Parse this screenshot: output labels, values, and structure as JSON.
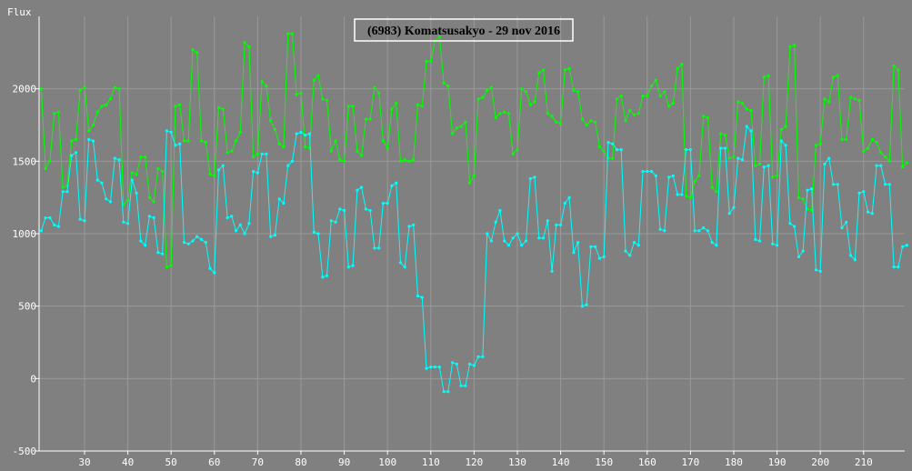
{
  "chart_data": {
    "type": "line",
    "title": "(6983) Komatsusakyo - 29 nov 2016",
    "ylabel": "Flux",
    "xlabel": "",
    "xlim": [
      19.5,
      219.5
    ],
    "ylim": [
      -500,
      2500
    ],
    "xticks": [
      30,
      40,
      50,
      60,
      70,
      80,
      90,
      100,
      110,
      120,
      130,
      140,
      150,
      160,
      170,
      180,
      190,
      200,
      210
    ],
    "yticks": [
      -500,
      0,
      500,
      1000,
      1500,
      2000
    ],
    "grid": true,
    "colors": {
      "background": "#808080",
      "grid": "#999999",
      "axis": "#ffffff",
      "title_box": "#ffffff"
    },
    "series": [
      {
        "color": "#00ff00",
        "values": [
          2000,
          1450,
          1500,
          1830,
          1840,
          1320,
          1330,
          1640,
          1650,
          1990,
          2010,
          1710,
          1750,
          1840,
          1880,
          1890,
          1930,
          2010,
          2000,
          1200,
          1230,
          1420,
          1410,
          1530,
          1530,
          1250,
          1220,
          1450,
          1430,
          770,
          780,
          1880,
          1890,
          1640,
          1640,
          2270,
          2250,
          1640,
          1630,
          1410,
          1400,
          1870,
          1860,
          1560,
          1570,
          1640,
          1700,
          2320,
          2290,
          1530,
          1550,
          2050,
          2020,
          1780,
          1720,
          1620,
          1600,
          2380,
          2380,
          1960,
          1970,
          1600,
          1590,
          2060,
          2090,
          1930,
          1920,
          1570,
          1640,
          1510,
          1500,
          1880,
          1880,
          1570,
          1540,
          1790,
          1790,
          2010,
          1970,
          1640,
          1590,
          1860,
          1900,
          1500,
          1510,
          1500,
          1510,
          1890,
          1880,
          2190,
          2190,
          2330,
          2360,
          2040,
          2020,
          1690,
          1730,
          1740,
          1770,
          1350,
          1400,
          1930,
          1940,
          1990,
          2010,
          1800,
          1830,
          1840,
          1830,
          1550,
          1580,
          2000,
          1980,
          1890,
          1910,
          2110,
          2130,
          1830,
          1810,
          1770,
          1760,
          2130,
          2140,
          1990,
          1980,
          1790,
          1750,
          1780,
          1770,
          1600,
          1570,
          1520,
          1520,
          1930,
          1950,
          1780,
          1850,
          1820,
          1830,
          1950,
          1950,
          2020,
          2060,
          1950,
          1980,
          1880,
          1900,
          2140,
          2170,
          1260,
          1250,
          1360,
          1400,
          1810,
          1800,
          1320,
          1290,
          1690,
          1680,
          1520,
          1530,
          1910,
          1900,
          1860,
          1850,
          1470,
          1480,
          2080,
          2090,
          1390,
          1400,
          1720,
          1740,
          2290,
          2300,
          1250,
          1240,
          1170,
          1160,
          1610,
          1620,
          1930,
          1910,
          2080,
          2090,
          1650,
          1650,
          1940,
          1930,
          1920,
          1570,
          1590,
          1650,
          1630,
          1560,
          1530,
          1500,
          2160,
          2130,
          1460,
          1490
        ]
      },
      {
        "color": "#00ffff",
        "values": [
          1020,
          1110,
          1110,
          1060,
          1050,
          1290,
          1290,
          1540,
          1560,
          1100,
          1090,
          1650,
          1640,
          1370,
          1350,
          1240,
          1220,
          1520,
          1510,
          1080,
          1070,
          1370,
          1280,
          950,
          920,
          1120,
          1110,
          870,
          860,
          1710,
          1700,
          1610,
          1620,
          940,
          930,
          950,
          980,
          960,
          940,
          760,
          730,
          1440,
          1470,
          1110,
          1120,
          1020,
          1060,
          1000,
          1070,
          1430,
          1420,
          1550,
          1550,
          980,
          990,
          1240,
          1210,
          1470,
          1500,
          1690,
          1700,
          1680,
          1690,
          1010,
          1000,
          700,
          710,
          1090,
          1080,
          1170,
          1160,
          770,
          780,
          1300,
          1320,
          1170,
          1160,
          900,
          900,
          1210,
          1210,
          1330,
          1350,
          800,
          770,
          1050,
          1060,
          570,
          560,
          70,
          80,
          80,
          80,
          -90,
          -90,
          110,
          100,
          -50,
          -50,
          100,
          90,
          150,
          150,
          1000,
          950,
          1080,
          1160,
          950,
          920,
          970,
          1000,
          920,
          950,
          1380,
          1390,
          970,
          970,
          1090,
          740,
          1060,
          1060,
          1210,
          1250,
          870,
          940,
          500,
          510,
          910,
          910,
          830,
          840,
          1630,
          1620,
          1580,
          1580,
          880,
          850,
          940,
          920,
          1430,
          1430,
          1430,
          1400,
          1030,
          1020,
          1390,
          1400,
          1270,
          1270,
          1580,
          1580,
          1020,
          1020,
          1040,
          1020,
          940,
          920,
          1590,
          1590,
          1140,
          1180,
          1520,
          1510,
          1740,
          1710,
          960,
          950,
          1460,
          1470,
          930,
          920,
          1640,
          1610,
          1070,
          1050,
          840,
          880,
          1300,
          1310,
          750,
          740,
          1480,
          1520,
          1340,
          1340,
          1040,
          1080,
          850,
          820,
          1280,
          1290,
          1150,
          1140,
          1470,
          1470,
          1340,
          1340,
          770,
          770,
          910,
          920
        ]
      }
    ]
  }
}
